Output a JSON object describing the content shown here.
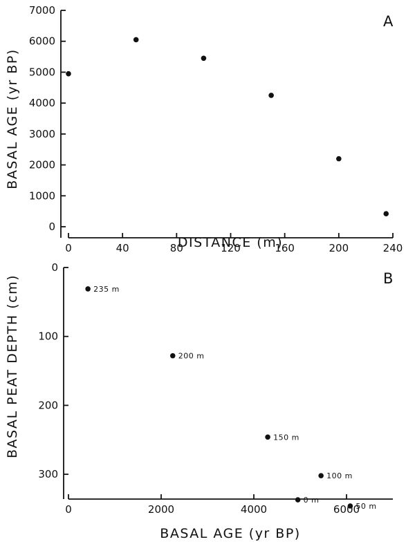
{
  "chart_data": [
    {
      "panel": "A",
      "type": "scatter",
      "xlabel": "DISTANCE (m)",
      "ylabel": "BASAL AGE (yr BP)",
      "xlim": [
        0,
        240
      ],
      "ylim": [
        0,
        7000
      ],
      "xticks": [
        0,
        40,
        80,
        120,
        160,
        200,
        240
      ],
      "yticks": [
        0,
        1000,
        2000,
        3000,
        4000,
        5000,
        6000,
        7000
      ],
      "points": [
        {
          "x": 0,
          "y": 4950
        },
        {
          "x": 50,
          "y": 6050
        },
        {
          "x": 100,
          "y": 5450
        },
        {
          "x": 150,
          "y": 4250
        },
        {
          "x": 200,
          "y": 2200
        },
        {
          "x": 235,
          "y": 420
        }
      ]
    },
    {
      "panel": "B",
      "type": "scatter",
      "xlabel": "BASAL AGE (yr BP)",
      "ylabel": "BASAL PEAT DEPTH (cm)",
      "xlim": [
        0,
        7000
      ],
      "ylim": [
        0,
        350
      ],
      "y_inverted": true,
      "xticks": [
        0,
        2000,
        4000,
        6000
      ],
      "yticks": [
        0,
        100,
        200,
        300
      ],
      "points": [
        {
          "x": 420,
          "y": 31,
          "label": "235 m"
        },
        {
          "x": 2250,
          "y": 128,
          "label": "200 m"
        },
        {
          "x": 4300,
          "y": 246,
          "label": "150 m"
        },
        {
          "x": 5450,
          "y": 302,
          "label": "100 m"
        },
        {
          "x": 4950,
          "y": 337,
          "label": "0 m"
        },
        {
          "x": 6080,
          "y": 346,
          "label": "50 m"
        }
      ]
    }
  ]
}
